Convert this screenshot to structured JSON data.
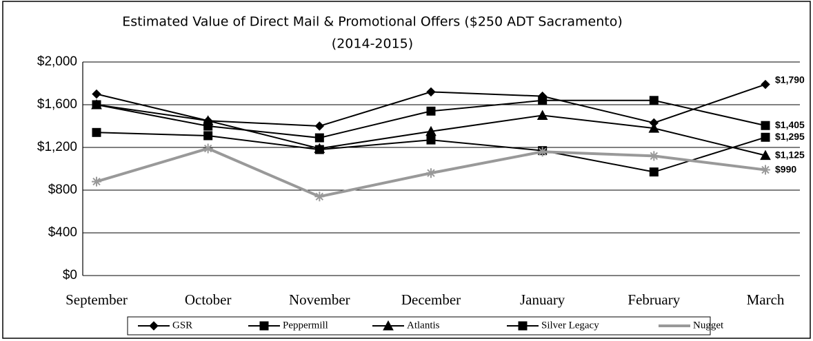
{
  "chart_data": {
    "type": "line",
    "title": "Estimated Value of Direct Mail & Promotional Offers ($250 ADT Sacramento)",
    "subtitle": "(2014-2015)",
    "categories": [
      "September",
      "October",
      "November",
      "December",
      "January",
      "February",
      "March"
    ],
    "series": [
      {
        "name": "GSR",
        "color": "#000000",
        "marker": "diamond",
        "values": [
          1700,
          1450,
          1400,
          1720,
          1680,
          1430,
          1790
        ],
        "value_labels": [
          null,
          null,
          null,
          null,
          null,
          null,
          "$1,790"
        ]
      },
      {
        "name": "Peppermill",
        "color": "#000000",
        "marker": "square",
        "values": [
          1600,
          1400,
          1290,
          1540,
          1640,
          1640,
          1405
        ],
        "value_labels": [
          null,
          null,
          null,
          null,
          null,
          null,
          "$1,405"
        ]
      },
      {
        "name": "Atlantis",
        "color": "#000000",
        "marker": "triangle",
        "values": [
          1600,
          1450,
          1190,
          1350,
          1500,
          1380,
          1125
        ],
        "value_labels": [
          null,
          null,
          null,
          null,
          null,
          null,
          "$1,125"
        ]
      },
      {
        "name": "Silver Legacy",
        "color": "#000000",
        "marker": "square",
        "values": [
          1340,
          1310,
          1180,
          1270,
          1170,
          970,
          1295
        ],
        "value_labels": [
          null,
          null,
          null,
          null,
          null,
          null,
          "$1,295"
        ]
      },
      {
        "name": "Nugget",
        "color": "#999999",
        "marker": "star",
        "values": [
          880,
          1190,
          740,
          960,
          1160,
          1120,
          990
        ],
        "value_labels": [
          null,
          null,
          null,
          null,
          null,
          null,
          "$990"
        ]
      }
    ],
    "ylim": [
      0,
      2000
    ],
    "yticks": [
      {
        "value": 0,
        "label": "$0"
      },
      {
        "value": 400,
        "label": "$400"
      },
      {
        "value": 800,
        "label": "$800"
      },
      {
        "value": 1200,
        "label": "$1,200"
      },
      {
        "value": 1600,
        "label": "$1,600"
      },
      {
        "value": 2000,
        "label": "$2,000"
      }
    ],
    "grid": true,
    "legend": "bottom"
  }
}
